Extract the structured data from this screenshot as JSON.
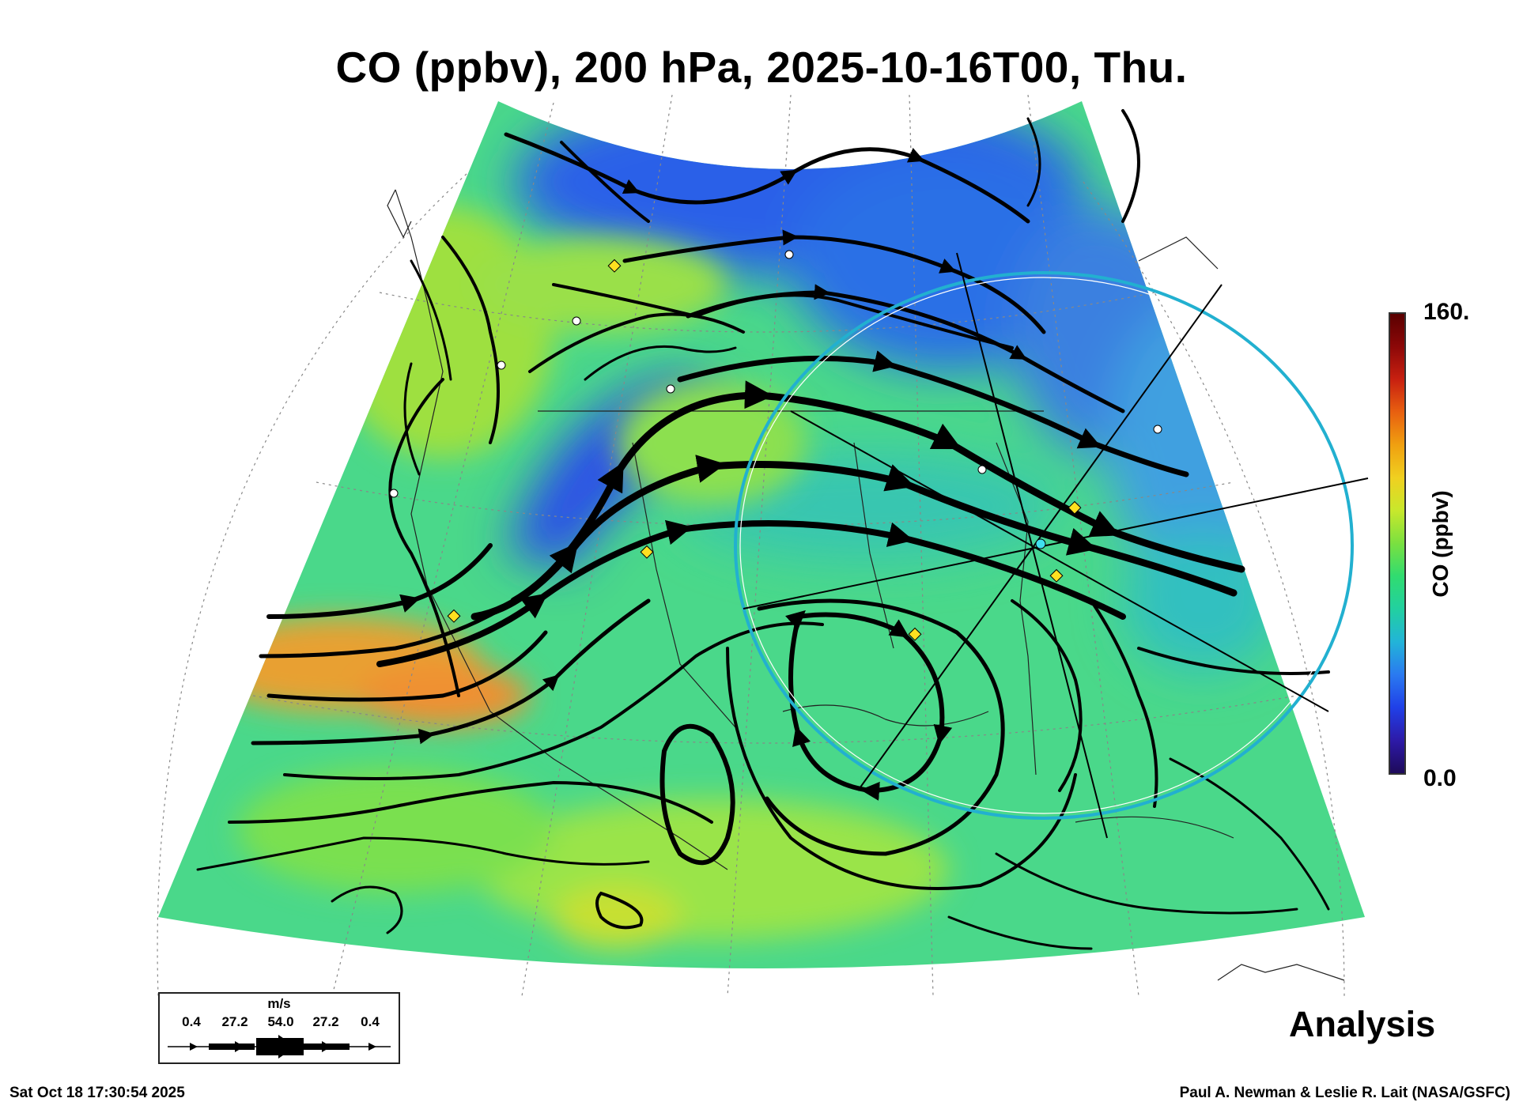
{
  "title": "CO (ppbv), 200 hPa, 2025-10-16T00, Thu.",
  "colorbar": {
    "label": "CO (ppbv)",
    "max_label": "160.",
    "min_label": "0.0",
    "colors": [
      "#1e0a5a",
      "#2d1aa8",
      "#2040e8",
      "#2a7af0",
      "#22b4d8",
      "#22d0a0",
      "#30dc70",
      "#7ae040",
      "#c8e82c",
      "#f0d020",
      "#f0a010",
      "#e86010",
      "#c82010",
      "#8c0808",
      "#5a0000"
    ]
  },
  "field": {
    "variable": "CO",
    "units": "ppbv",
    "pressure_level": "200 hPa",
    "valid_time": "2025-10-16T00",
    "day": "Thu.",
    "range": [
      0,
      160
    ],
    "low_region_color": "#2a60e8",
    "background_color": "#4ad88a",
    "high_region_color": "#f09030"
  },
  "legend": {
    "units": "m/s",
    "values": [
      "0.4",
      "27.2",
      "54.0",
      "27.2",
      "0.4"
    ]
  },
  "analysis_label": "Analysis",
  "timestamp": "Sat Oct 18 17:30:54 2025",
  "credit": "Paul A. Newman & Leslie R. Lait (NASA/GSFC)"
}
